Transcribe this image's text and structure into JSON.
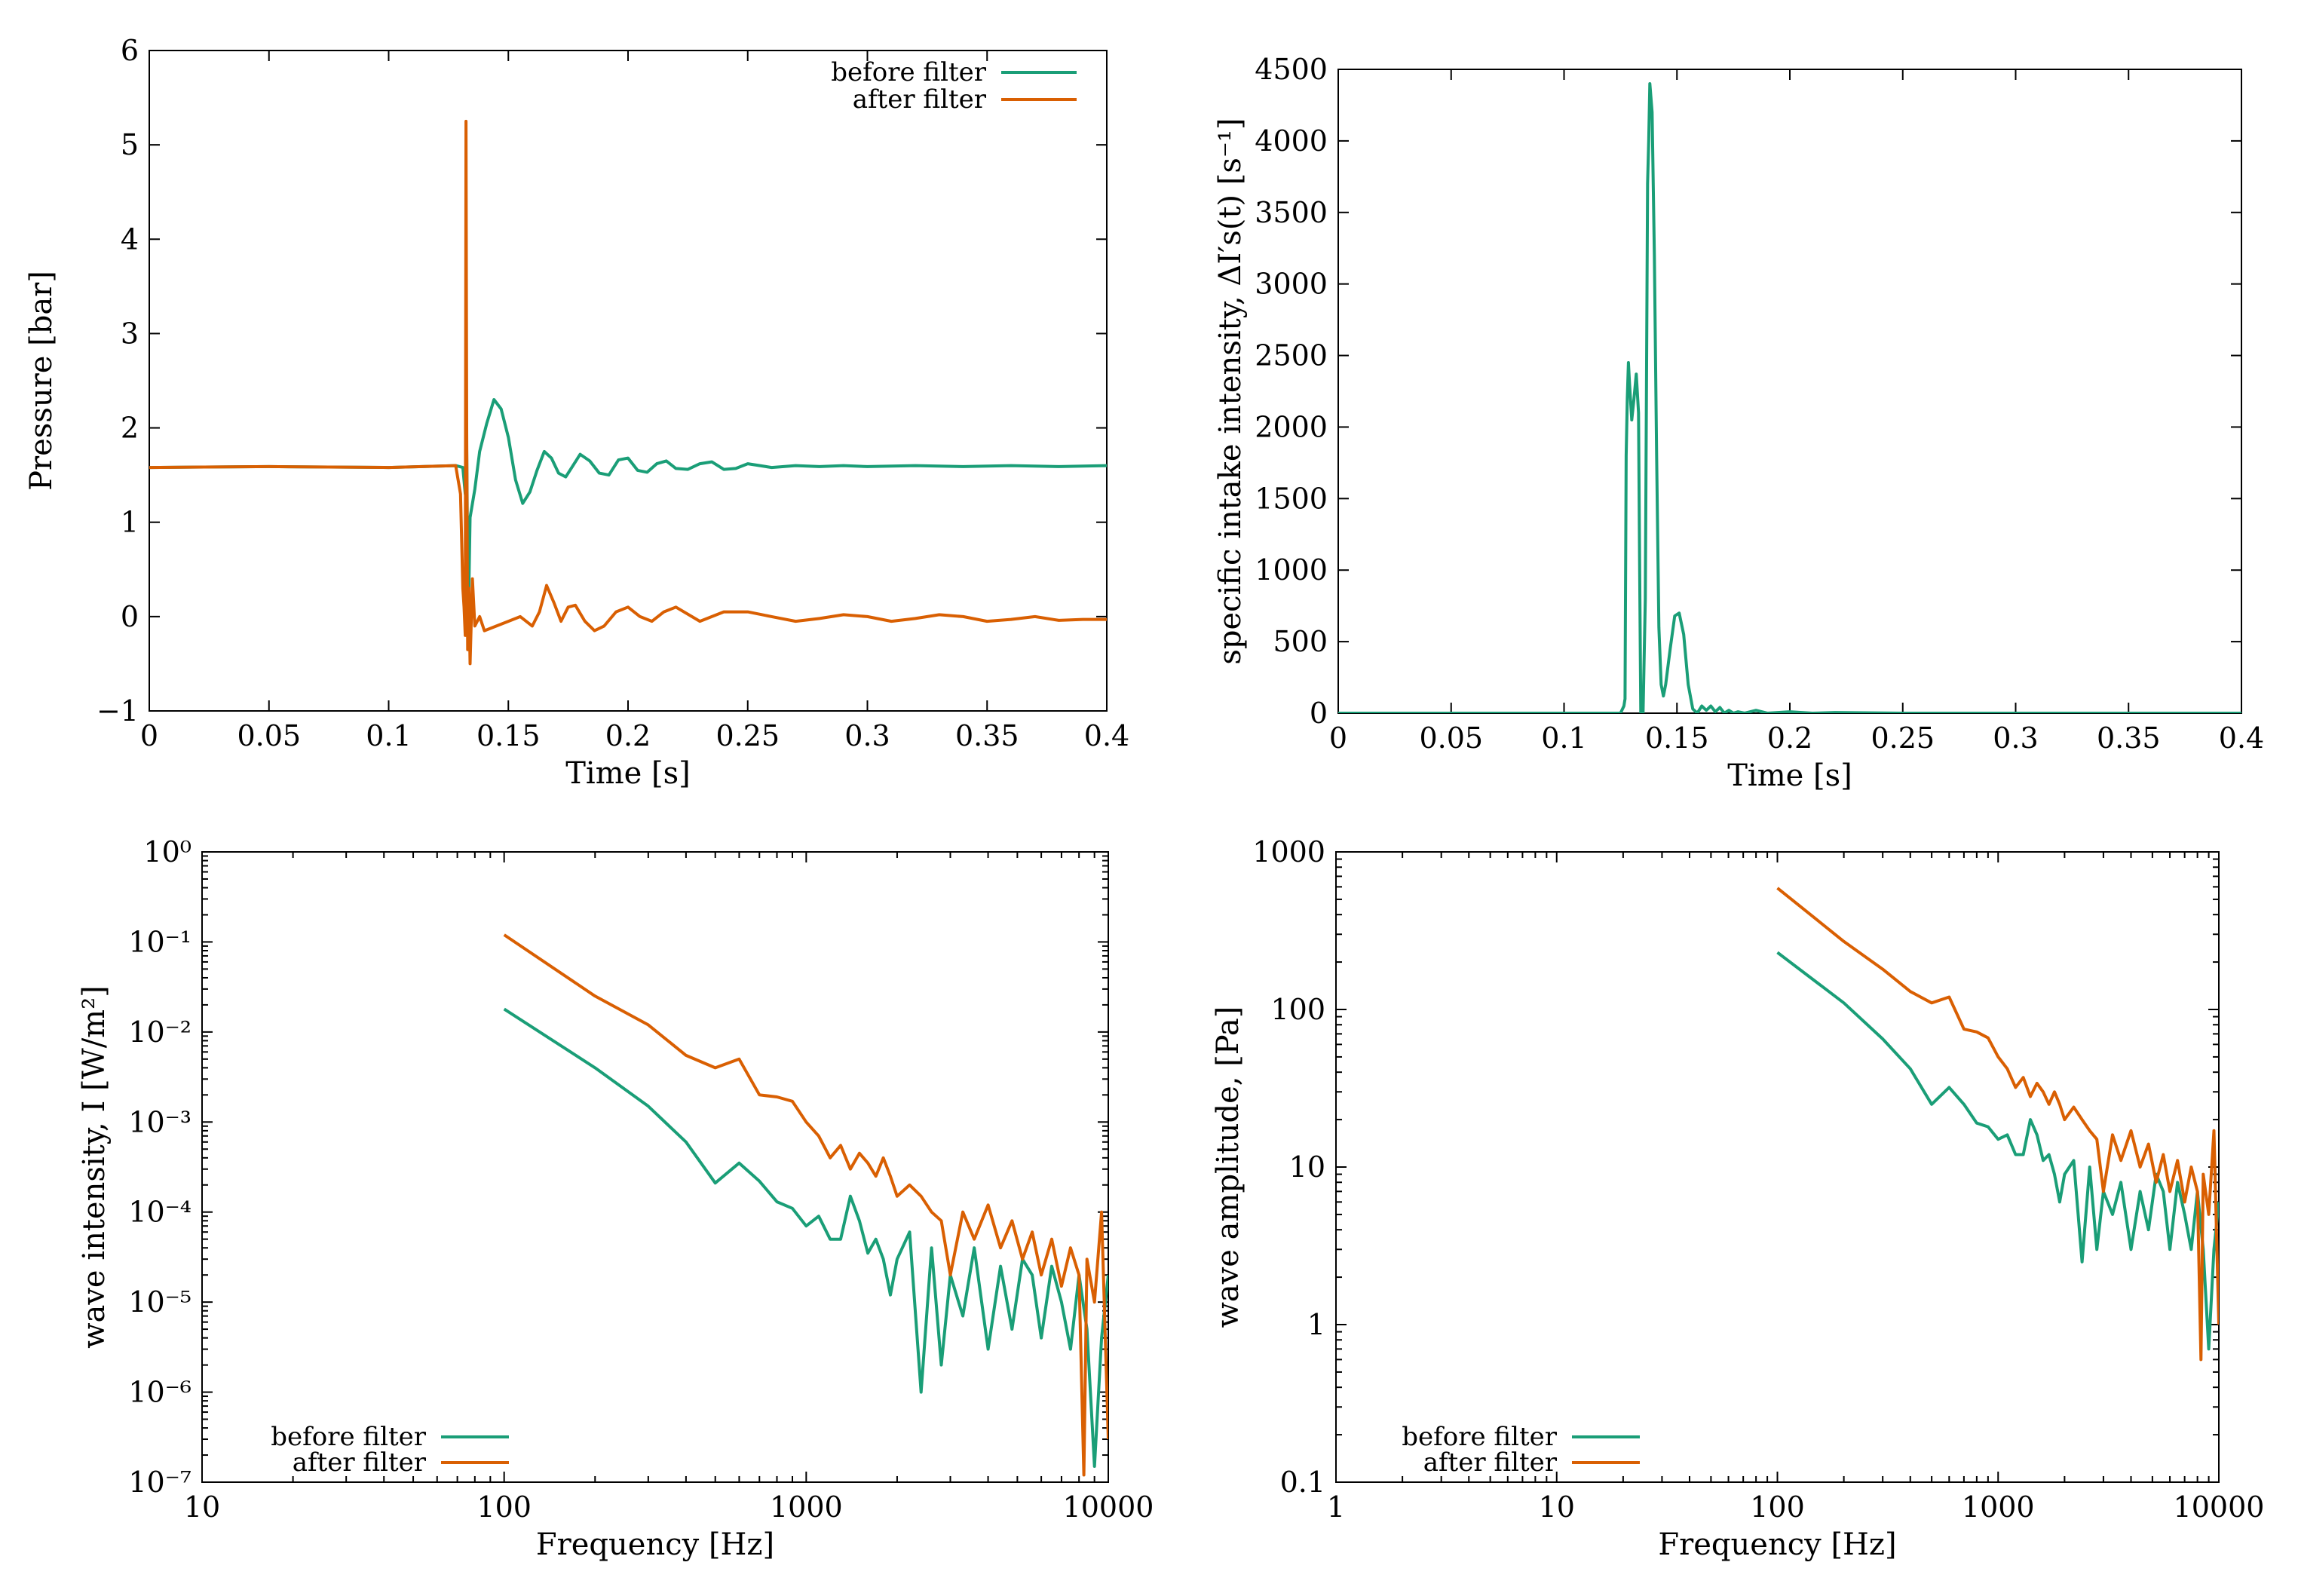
{
  "colors": {
    "before": "#1a9e77",
    "after": "#d95f02"
  },
  "chart_data": [
    {
      "id": "p1",
      "type": "line",
      "xscale": "linear",
      "yscale": "linear",
      "xlabel": "Time [s]",
      "ylabel": "Pressure [bar]",
      "xlim": [
        0,
        0.4
      ],
      "ylim": [
        -1,
        6
      ],
      "xticks": [
        0,
        0.05,
        0.1,
        0.15,
        0.2,
        0.25,
        0.3,
        0.35,
        0.4
      ],
      "xtick_labels": [
        "0",
        "0.05",
        "0.1",
        "0.15",
        "0.2",
        "0.25",
        "0.3",
        "0.35",
        "0.4"
      ],
      "yticks": [
        -1,
        0,
        1,
        2,
        3,
        4,
        5,
        6
      ],
      "ytick_labels": [
        "−1",
        "0",
        "1",
        "2",
        "3",
        "4",
        "5",
        "6"
      ],
      "legend_position": "top-right",
      "series": [
        {
          "name": "before filter",
          "color_key": "before",
          "x": [
            0,
            0.05,
            0.1,
            0.128,
            0.131,
            0.132,
            0.1325,
            0.133,
            0.1335,
            0.134,
            0.136,
            0.138,
            0.141,
            0.144,
            0.147,
            0.15,
            0.153,
            0.156,
            0.159,
            0.162,
            0.165,
            0.168,
            0.171,
            0.174,
            0.177,
            0.18,
            0.184,
            0.188,
            0.192,
            0.196,
            0.2,
            0.204,
            0.208,
            0.212,
            0.216,
            0.22,
            0.225,
            0.23,
            0.235,
            0.24,
            0.245,
            0.25,
            0.26,
            0.27,
            0.28,
            0.29,
            0.3,
            0.32,
            0.34,
            0.36,
            0.38,
            0.4
          ],
          "y": [
            1.58,
            1.59,
            1.58,
            1.6,
            1.58,
            1.3,
            2.05,
            0.6,
            0.3,
            1.05,
            1.35,
            1.75,
            2.05,
            2.3,
            2.2,
            1.9,
            1.45,
            1.2,
            1.32,
            1.55,
            1.75,
            1.68,
            1.52,
            1.48,
            1.6,
            1.72,
            1.65,
            1.52,
            1.5,
            1.66,
            1.68,
            1.55,
            1.53,
            1.62,
            1.65,
            1.57,
            1.56,
            1.62,
            1.64,
            1.56,
            1.57,
            1.62,
            1.58,
            1.6,
            1.59,
            1.6,
            1.59,
            1.6,
            1.59,
            1.6,
            1.59,
            1.6
          ]
        },
        {
          "name": "after filter",
          "color_key": "after",
          "x": [
            0,
            0.05,
            0.1,
            0.128,
            0.13,
            0.131,
            0.1315,
            0.132,
            0.1323,
            0.1326,
            0.133,
            0.1335,
            0.134,
            0.135,
            0.136,
            0.138,
            0.14,
            0.145,
            0.15,
            0.155,
            0.16,
            0.163,
            0.166,
            0.169,
            0.172,
            0.175,
            0.178,
            0.182,
            0.186,
            0.19,
            0.195,
            0.2,
            0.205,
            0.21,
            0.215,
            0.22,
            0.23,
            0.24,
            0.25,
            0.26,
            0.27,
            0.28,
            0.29,
            0.3,
            0.31,
            0.32,
            0.33,
            0.34,
            0.35,
            0.36,
            0.37,
            0.38,
            0.39,
            0.4
          ],
          "y": [
            1.58,
            1.59,
            1.58,
            1.6,
            1.3,
            0.3,
            0.1,
            -0.2,
            5.25,
            2.0,
            -0.35,
            0.3,
            -0.5,
            0.4,
            -0.1,
            0.0,
            -0.15,
            -0.1,
            -0.05,
            0.0,
            -0.1,
            0.05,
            0.33,
            0.15,
            -0.05,
            0.1,
            0.12,
            -0.05,
            -0.15,
            -0.1,
            0.05,
            0.1,
            0.0,
            -0.05,
            0.05,
            0.1,
            -0.05,
            0.05,
            0.05,
            0.0,
            -0.05,
            -0.02,
            0.02,
            0.0,
            -0.05,
            -0.02,
            0.02,
            0.0,
            -0.05,
            -0.03,
            0.0,
            -0.04,
            -0.03,
            -0.03
          ]
        }
      ]
    },
    {
      "id": "p2",
      "type": "line",
      "xscale": "linear",
      "yscale": "linear",
      "xlabel": "Time [s]",
      "ylabel": "specific intake intensity, ΔI′s(t) [s⁻¹]",
      "xlim": [
        0,
        0.4
      ],
      "ylim": [
        0,
        4500
      ],
      "xticks": [
        0,
        0.05,
        0.1,
        0.15,
        0.2,
        0.25,
        0.3,
        0.35,
        0.4
      ],
      "xtick_labels": [
        "0",
        "0.05",
        "0.1",
        "0.15",
        "0.2",
        "0.25",
        "0.3",
        "0.35",
        "0.4"
      ],
      "yticks": [
        0,
        500,
        1000,
        1500,
        2000,
        2500,
        3000,
        3500,
        4000,
        4500
      ],
      "ytick_labels": [
        "0",
        "500",
        "1000",
        "1500",
        "2000",
        "2500",
        "3000",
        "3500",
        "4000",
        "4500"
      ],
      "series": [
        {
          "name": "",
          "color_key": "before",
          "x": [
            0,
            0.1,
            0.125,
            0.1265,
            0.127,
            0.1275,
            0.128,
            0.1285,
            0.129,
            0.13,
            0.131,
            0.132,
            0.133,
            0.1335,
            0.134,
            0.1345,
            0.135,
            0.136,
            0.137,
            0.1375,
            0.138,
            0.139,
            0.14,
            0.141,
            0.142,
            0.143,
            0.144,
            0.145,
            0.147,
            0.149,
            0.151,
            0.153,
            0.155,
            0.157,
            0.159,
            0.161,
            0.163,
            0.165,
            0.167,
            0.169,
            0.171,
            0.173,
            0.175,
            0.177,
            0.18,
            0.185,
            0.19,
            0.2,
            0.21,
            0.22,
            0.25,
            0.3,
            0.35,
            0.4
          ],
          "y": [
            0,
            0,
            0,
            50,
            100,
            1800,
            2200,
            2450,
            2300,
            2050,
            2200,
            2370,
            2100,
            1000,
            0,
            0,
            0,
            800,
            3700,
            4000,
            4400,
            4200,
            3200,
            1800,
            600,
            200,
            120,
            200,
            450,
            680,
            700,
            550,
            200,
            30,
            0,
            50,
            20,
            50,
            10,
            40,
            0,
            20,
            0,
            10,
            0,
            20,
            0,
            10,
            0,
            5,
            0,
            0,
            0,
            0
          ]
        }
      ]
    },
    {
      "id": "p3",
      "type": "line",
      "xscale": "log",
      "yscale": "log",
      "xlabel": "Frequency [Hz]",
      "ylabel": "wave intensity, I [W/m²]",
      "xlim": [
        10,
        10000
      ],
      "ylim": [
        1e-07,
        1
      ],
      "xticks": [
        10,
        100,
        1000,
        10000
      ],
      "xtick_labels": [
        "10",
        "100",
        "1000",
        "10000"
      ],
      "yticks": [
        1e-07,
        1e-06,
        1e-05,
        0.0001,
        0.001,
        0.01,
        0.1,
        1
      ],
      "ytick_labels": [
        "10⁻⁷",
        "10⁻⁶",
        "10⁻⁵",
        "10⁻⁴",
        "10⁻³",
        "10⁻²",
        "10⁻¹",
        "10⁰"
      ],
      "legend_position": "bottom-left",
      "series": [
        {
          "name": "before filter",
          "color_key": "before",
          "x": [
            100,
            200,
            300,
            400,
            500,
            600,
            700,
            800,
            900,
            1000,
            1100,
            1200,
            1300,
            1400,
            1500,
            1600,
            1700,
            1800,
            1900,
            2000,
            2200,
            2400,
            2600,
            2800,
            3000,
            3300,
            3600,
            4000,
            4400,
            4800,
            5200,
            5600,
            6000,
            6500,
            7000,
            7500,
            8000,
            8500,
            9000,
            9500,
            10000
          ],
          "y": [
            0.018,
            0.004,
            0.0015,
            0.0006,
            0.00021,
            0.00035,
            0.00022,
            0.00013,
            0.00011,
            7e-05,
            9e-05,
            5e-05,
            5e-05,
            0.00015,
            8e-05,
            3.5e-05,
            5e-05,
            3e-05,
            1.2e-05,
            3e-05,
            6e-05,
            1e-06,
            4e-05,
            2e-06,
            2e-05,
            7e-06,
            4e-05,
            3e-06,
            2.5e-05,
            5e-06,
            3e-05,
            2e-05,
            4e-06,
            2.5e-05,
            1e-05,
            3e-06,
            2e-05,
            5e-06,
            1.5e-07,
            4e-06,
            2e-05
          ]
        },
        {
          "name": "after filter",
          "color_key": "after",
          "x": [
            100,
            200,
            300,
            400,
            500,
            600,
            700,
            800,
            900,
            1000,
            1100,
            1200,
            1300,
            1400,
            1500,
            1600,
            1700,
            1800,
            1900,
            2000,
            2200,
            2400,
            2600,
            2800,
            3000,
            3300,
            3600,
            4000,
            4400,
            4800,
            5200,
            5600,
            6000,
            6500,
            7000,
            7500,
            8000,
            8300,
            8500,
            9000,
            9500,
            10000
          ],
          "y": [
            0.12,
            0.025,
            0.012,
            0.0055,
            0.004,
            0.005,
            0.002,
            0.0019,
            0.0017,
            0.001,
            0.0007,
            0.0004,
            0.00055,
            0.0003,
            0.00045,
            0.00035,
            0.00025,
            0.0004,
            0.00025,
            0.00015,
            0.0002,
            0.00015,
            0.0001,
            8e-05,
            2e-05,
            0.0001,
            5e-05,
            0.00012,
            4e-05,
            8e-05,
            3e-05,
            6e-05,
            2e-05,
            5e-05,
            1.5e-05,
            4e-05,
            2e-05,
            1.2e-07,
            3e-05,
            1e-05,
            0.0001,
            3e-07
          ]
        }
      ]
    },
    {
      "id": "p4",
      "type": "line",
      "xscale": "log",
      "yscale": "log",
      "xlabel": "Frequency [Hz]",
      "ylabel": "wave amplitude, [Pa]",
      "xlim": [
        1,
        10000
      ],
      "ylim": [
        0.1,
        1000
      ],
      "xticks": [
        1,
        10,
        100,
        1000,
        10000
      ],
      "xtick_labels": [
        "1",
        "10",
        "100",
        "1000",
        "10000"
      ],
      "yticks": [
        0.1,
        1,
        10,
        100,
        1000
      ],
      "ytick_labels": [
        "0.1",
        "1",
        "10",
        "100",
        "1000"
      ],
      "legend_position": "bottom-left",
      "series": [
        {
          "name": "before filter",
          "color_key": "before",
          "x": [
            100,
            200,
            300,
            400,
            500,
            600,
            700,
            800,
            900,
            1000,
            1100,
            1200,
            1300,
            1400,
            1500,
            1600,
            1700,
            1800,
            1900,
            2000,
            2200,
            2400,
            2600,
            2800,
            3000,
            3300,
            3600,
            4000,
            4400,
            4800,
            5200,
            5600,
            6000,
            6500,
            7000,
            7500,
            8000,
            8500,
            9000,
            9500,
            10000
          ],
          "y": [
            230,
            110,
            65,
            42,
            25,
            32,
            25,
            19,
            18,
            15,
            16,
            12,
            12,
            20,
            16,
            11,
            12,
            9,
            6,
            9,
            11,
            2.5,
            10,
            3,
            7,
            5,
            8,
            3,
            7,
            4,
            9,
            7,
            3,
            8,
            5,
            3,
            7,
            3,
            0.7,
            3,
            6
          ]
        },
        {
          "name": "after filter",
          "color_key": "after",
          "x": [
            100,
            200,
            300,
            400,
            500,
            600,
            700,
            800,
            900,
            1000,
            1100,
            1200,
            1300,
            1400,
            1500,
            1600,
            1700,
            1800,
            1900,
            2000,
            2200,
            2400,
            2600,
            2800,
            3000,
            3300,
            3600,
            4000,
            4400,
            4800,
            5200,
            5600,
            6000,
            6500,
            7000,
            7500,
            8000,
            8300,
            8500,
            9000,
            9500,
            10000
          ],
          "y": [
            590,
            270,
            180,
            130,
            110,
            120,
            75,
            72,
            66,
            50,
            42,
            32,
            37,
            28,
            34,
            30,
            25,
            30,
            25,
            20,
            24,
            20,
            17,
            15,
            7,
            16,
            11,
            17,
            10,
            14,
            8,
            12,
            7,
            11,
            6,
            10,
            7,
            0.6,
            9,
            5,
            17,
            1
          ]
        }
      ]
    }
  ]
}
